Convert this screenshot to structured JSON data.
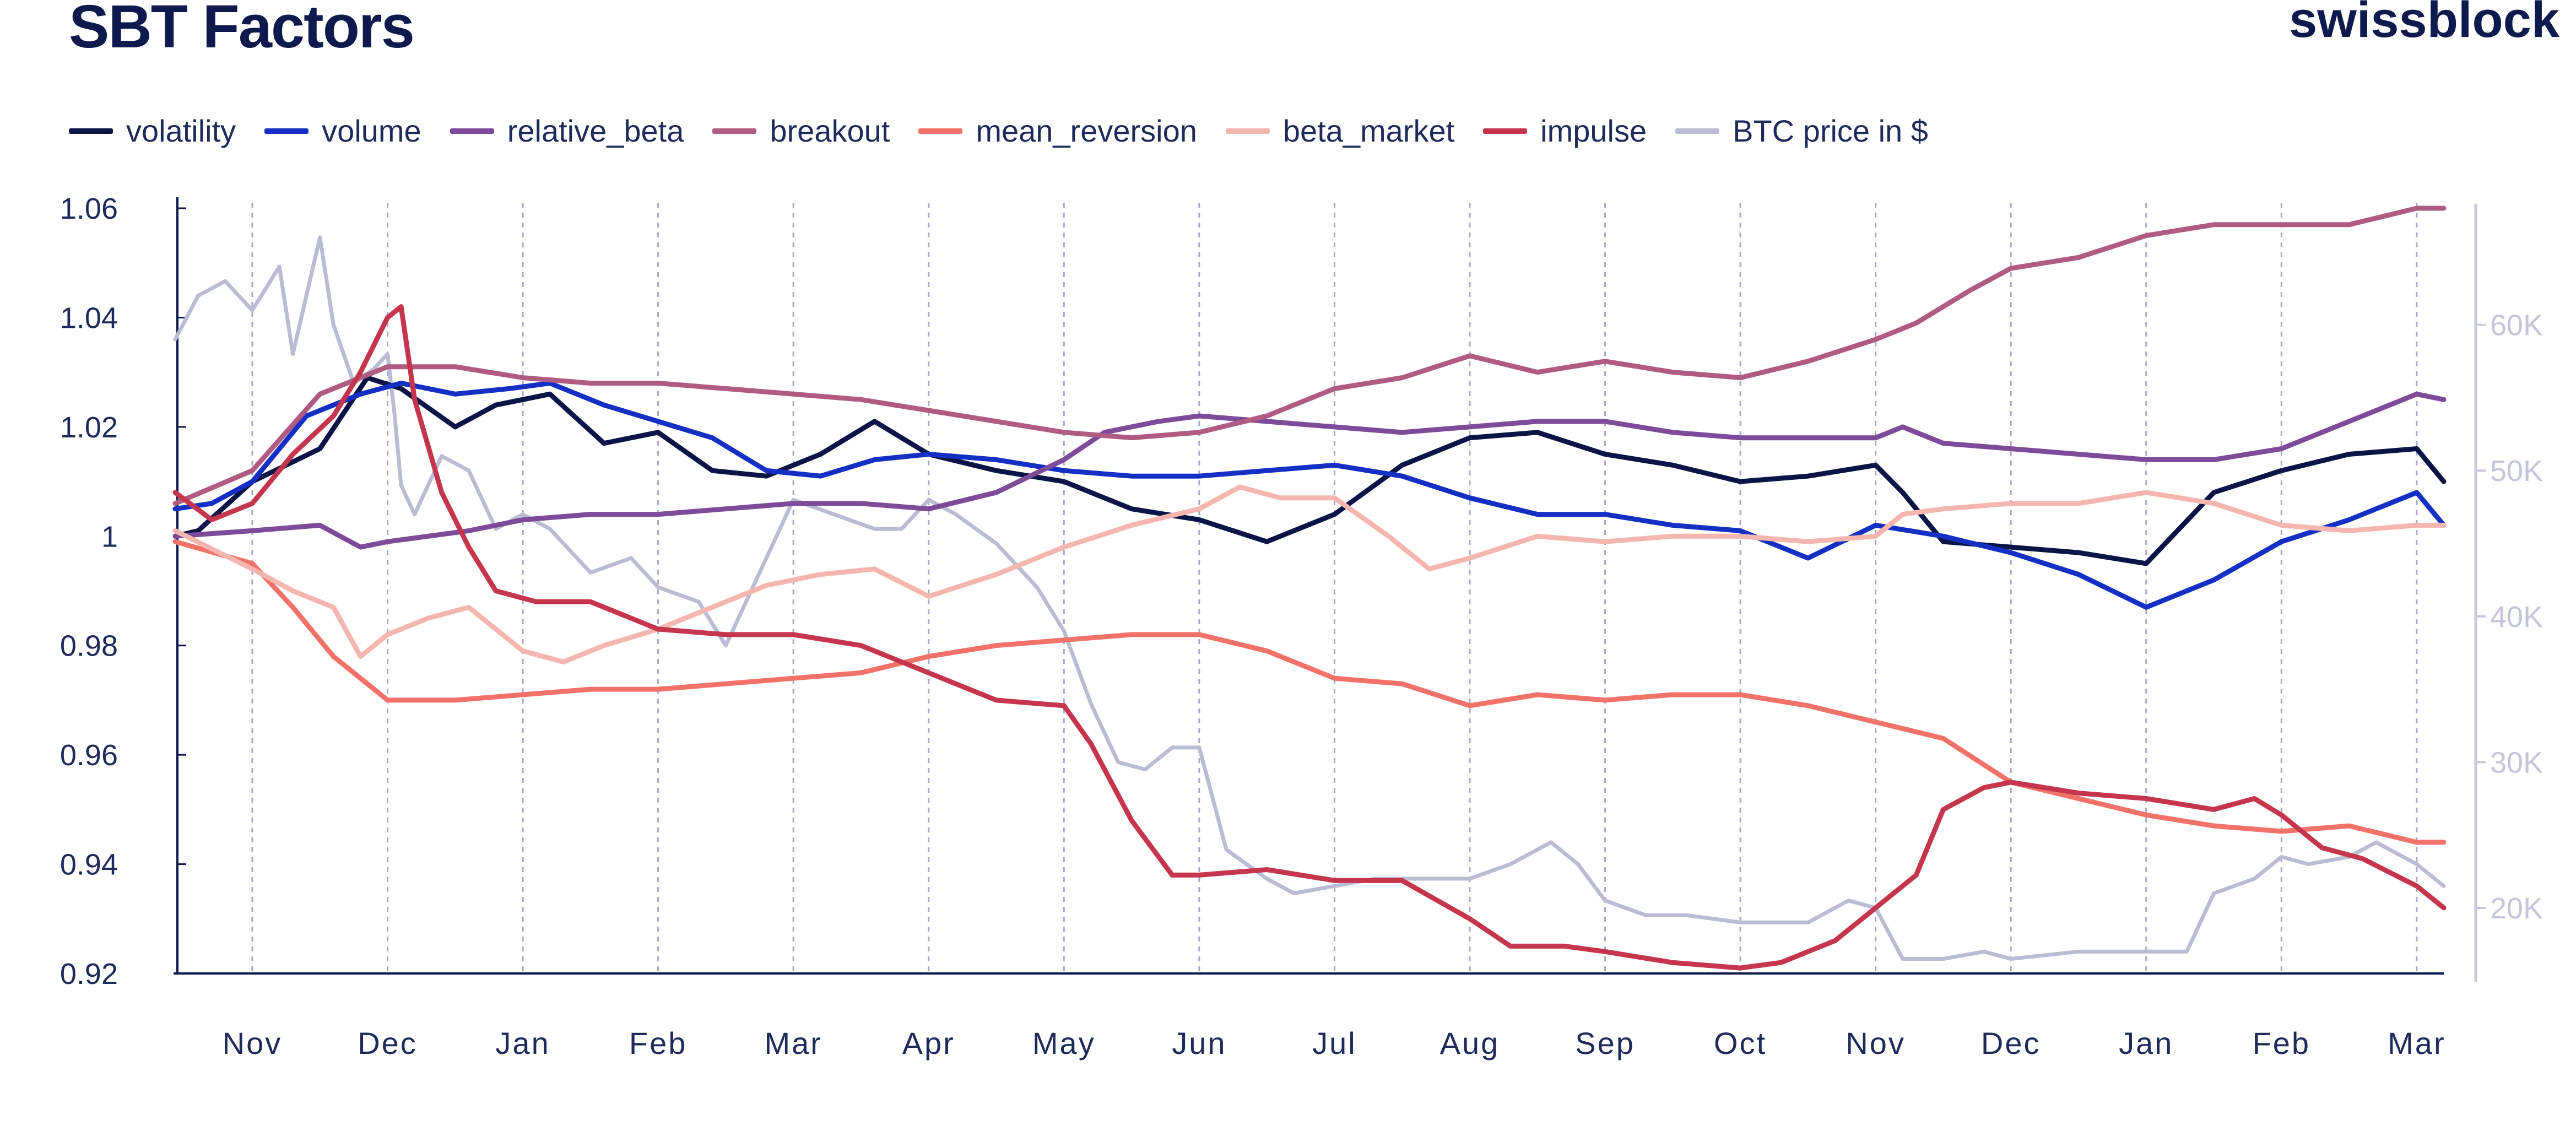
{
  "header": {
    "title": "SBT Factors",
    "brand": "swissblock"
  },
  "chart_data": {
    "type": "line",
    "left_ticks": [
      {
        "value": 0.92,
        "label": "0.92"
      },
      {
        "value": 0.94,
        "label": "0.94"
      },
      {
        "value": 0.96,
        "label": "0.96"
      },
      {
        "value": 0.98,
        "label": "0.98"
      },
      {
        "value": 1.0,
        "label": "1"
      },
      {
        "value": 1.02,
        "label": "1.02"
      },
      {
        "value": 1.04,
        "label": "1.04"
      },
      {
        "value": 1.06,
        "label": "1.06"
      }
    ],
    "right_ticks": [
      {
        "value": 20000,
        "label": "20K"
      },
      {
        "value": 30000,
        "label": "30K"
      },
      {
        "value": 40000,
        "label": "40K"
      },
      {
        "value": 50000,
        "label": "50K"
      },
      {
        "value": 60000,
        "label": "60K"
      }
    ],
    "ylim_left": [
      0.92,
      1.06
    ],
    "ylim_right": [
      15500,
      68000
    ],
    "xlim": [
      -0.57,
      16.2
    ],
    "months": [
      {
        "x": 0,
        "label": "Nov"
      },
      {
        "x": 1,
        "label": "Dec"
      },
      {
        "x": 2,
        "label": "Jan"
      },
      {
        "x": 3,
        "label": "Feb"
      },
      {
        "x": 4,
        "label": "Mar"
      },
      {
        "x": 5,
        "label": "Apr"
      },
      {
        "x": 6,
        "label": "May"
      },
      {
        "x": 7,
        "label": "Jun"
      },
      {
        "x": 8,
        "label": "Jul"
      },
      {
        "x": 9,
        "label": "Aug"
      },
      {
        "x": 10,
        "label": "Sep"
      },
      {
        "x": 11,
        "label": "Oct"
      },
      {
        "x": 12,
        "label": "Nov"
      },
      {
        "x": 13,
        "label": "Dec"
      },
      {
        "x": 14,
        "label": "Jan"
      },
      {
        "x": 15,
        "label": "Feb"
      },
      {
        "x": 16,
        "label": "Mar"
      }
    ],
    "grid": "vertical dashed at each month",
    "legend_position": "top-left",
    "series": [
      {
        "name": "volatility",
        "color": "#0b1446",
        "axis": "left",
        "x": [
          -0.57,
          -0.4,
          0,
          0.5,
          0.85,
          1.1,
          1.5,
          1.8,
          2.2,
          2.6,
          3.0,
          3.4,
          3.8,
          4.2,
          4.6,
          5.0,
          5.5,
          6.0,
          6.5,
          7.0,
          7.5,
          8.0,
          8.5,
          9.0,
          9.5,
          10.0,
          10.5,
          11.0,
          11.5,
          12.0,
          12.2,
          12.5,
          13.0,
          13.5,
          14.0,
          14.5,
          15.0,
          15.5,
          16.0,
          16.2
        ],
        "y": [
          1.0,
          1.001,
          1.01,
          1.016,
          1.029,
          1.027,
          1.02,
          1.024,
          1.026,
          1.017,
          1.019,
          1.012,
          1.011,
          1.015,
          1.021,
          1.015,
          1.012,
          1.01,
          1.005,
          1.003,
          0.999,
          1.004,
          1.013,
          1.018,
          1.019,
          1.015,
          1.013,
          1.01,
          1.011,
          1.013,
          1.008,
          0.999,
          0.998,
          0.997,
          0.995,
          1.008,
          1.012,
          1.015,
          1.016,
          1.01
        ]
      },
      {
        "name": "volume",
        "color": "#1430c4",
        "axis": "left",
        "x": [
          -0.57,
          -0.3,
          0,
          0.4,
          0.8,
          1.1,
          1.5,
          1.9,
          2.2,
          2.6,
          3.0,
          3.4,
          3.8,
          4.2,
          4.6,
          5.0,
          5.5,
          6.0,
          6.5,
          7.0,
          7.5,
          8.0,
          8.5,
          9.0,
          9.5,
          10.0,
          10.5,
          11.0,
          11.5,
          12.0,
          12.5,
          13.0,
          13.5,
          14.0,
          14.5,
          15.0,
          15.5,
          16.0,
          16.2
        ],
        "y": [
          1.005,
          1.006,
          1.01,
          1.022,
          1.026,
          1.028,
          1.026,
          1.027,
          1.028,
          1.024,
          1.021,
          1.018,
          1.012,
          1.011,
          1.014,
          1.015,
          1.014,
          1.012,
          1.011,
          1.011,
          1.012,
          1.013,
          1.011,
          1.007,
          1.004,
          1.004,
          1.002,
          1.001,
          0.996,
          1.002,
          1.0,
          0.997,
          0.993,
          0.987,
          0.992,
          0.999,
          1.003,
          1.008,
          1.002
        ]
      },
      {
        "name": "relative_beta",
        "color": "#7e4a9a",
        "axis": "left",
        "x": [
          -0.57,
          0,
          0.5,
          0.8,
          1.0,
          1.3,
          1.6,
          2.0,
          2.5,
          3.0,
          3.5,
          4.0,
          4.5,
          5.0,
          5.5,
          6.0,
          6.3,
          6.7,
          7.0,
          7.5,
          8.0,
          8.5,
          9.0,
          9.5,
          10.0,
          10.5,
          11.0,
          11.5,
          12.0,
          12.2,
          12.5,
          13.0,
          13.5,
          14.0,
          14.5,
          15.0,
          15.5,
          16.0,
          16.2
        ],
        "y": [
          1.0,
          1.001,
          1.002,
          0.998,
          0.999,
          1.0,
          1.001,
          1.003,
          1.004,
          1.004,
          1.005,
          1.006,
          1.006,
          1.005,
          1.008,
          1.014,
          1.019,
          1.021,
          1.022,
          1.021,
          1.02,
          1.019,
          1.02,
          1.021,
          1.021,
          1.019,
          1.018,
          1.018,
          1.018,
          1.02,
          1.017,
          1.016,
          1.015,
          1.014,
          1.014,
          1.016,
          1.021,
          1.026,
          1.025
        ]
      },
      {
        "name": "breakout",
        "color": "#b05c82",
        "axis": "left",
        "x": [
          -0.57,
          0,
          0.5,
          1.0,
          1.5,
          2.0,
          2.5,
          3.0,
          3.5,
          4.0,
          4.5,
          5.0,
          5.5,
          6.0,
          6.5,
          7.0,
          7.5,
          8.0,
          8.5,
          9.0,
          9.5,
          10.0,
          10.5,
          11.0,
          11.5,
          12.0,
          12.3,
          12.7,
          13.0,
          13.5,
          14.0,
          14.5,
          15.0,
          15.5,
          16.0,
          16.2
        ],
        "y": [
          1.006,
          1.012,
          1.026,
          1.031,
          1.031,
          1.029,
          1.028,
          1.028,
          1.027,
          1.026,
          1.025,
          1.023,
          1.021,
          1.019,
          1.018,
          1.019,
          1.022,
          1.027,
          1.029,
          1.033,
          1.03,
          1.032,
          1.03,
          1.029,
          1.032,
          1.036,
          1.039,
          1.045,
          1.049,
          1.051,
          1.055,
          1.057,
          1.057,
          1.057,
          1.06,
          1.06
        ]
      },
      {
        "name": "mean_reversion",
        "color": "#f2726a",
        "axis": "left",
        "x": [
          -0.57,
          0,
          0.3,
          0.6,
          1.0,
          1.5,
          2.0,
          2.5,
          3.0,
          3.5,
          4.0,
          4.5,
          5.0,
          5.5,
          6.0,
          6.5,
          7.0,
          7.5,
          8.0,
          8.5,
          9.0,
          9.5,
          10.0,
          10.5,
          11.0,
          11.5,
          12.0,
          12.5,
          13.0,
          13.5,
          14.0,
          14.5,
          15.0,
          15.5,
          16.0,
          16.2
        ],
        "y": [
          0.999,
          0.995,
          0.987,
          0.978,
          0.97,
          0.97,
          0.971,
          0.972,
          0.972,
          0.973,
          0.974,
          0.975,
          0.978,
          0.98,
          0.981,
          0.982,
          0.982,
          0.979,
          0.974,
          0.973,
          0.969,
          0.971,
          0.97,
          0.971,
          0.971,
          0.969,
          0.966,
          0.963,
          0.955,
          0.952,
          0.949,
          0.947,
          0.946,
          0.947,
          0.944,
          0.944
        ]
      },
      {
        "name": "beta_market",
        "color": "#f6b6b0",
        "axis": "left",
        "x": [
          -0.57,
          0,
          0.3,
          0.6,
          0.8,
          1.0,
          1.3,
          1.6,
          2.0,
          2.3,
          2.6,
          3.0,
          3.4,
          3.8,
          4.2,
          4.6,
          5.0,
          5.5,
          6.0,
          6.5,
          7.0,
          7.3,
          7.6,
          8.0,
          8.4,
          8.7,
          9.0,
          9.5,
          10.0,
          10.5,
          11.0,
          11.5,
          12.0,
          12.2,
          12.5,
          13.0,
          13.5,
          14.0,
          14.5,
          15.0,
          15.5,
          16.0,
          16.2
        ],
        "y": [
          1.001,
          0.994,
          0.99,
          0.987,
          0.978,
          0.982,
          0.985,
          0.987,
          0.979,
          0.977,
          0.98,
          0.983,
          0.987,
          0.991,
          0.993,
          0.994,
          0.989,
          0.993,
          0.998,
          1.002,
          1.005,
          1.009,
          1.007,
          1.007,
          1.0,
          0.994,
          0.996,
          1.0,
          0.999,
          1.0,
          1.0,
          0.999,
          1.0,
          1.004,
          1.005,
          1.006,
          1.006,
          1.008,
          1.006,
          1.002,
          1.001,
          1.002,
          1.002
        ]
      },
      {
        "name": "impulse",
        "color": "#c5354e",
        "axis": "left",
        "x": [
          -0.57,
          -0.3,
          0,
          0.3,
          0.6,
          0.8,
          1.0,
          1.1,
          1.2,
          1.4,
          1.6,
          1.8,
          2.1,
          2.5,
          3.0,
          3.5,
          4.0,
          4.5,
          4.8,
          5.0,
          5.5,
          6.0,
          6.2,
          6.5,
          6.8,
          7.0,
          7.5,
          8.0,
          8.5,
          9.0,
          9.3,
          9.7,
          10.0,
          10.5,
          11.0,
          11.3,
          11.7,
          12.0,
          12.3,
          12.5,
          12.8,
          13.0,
          13.5,
          14.0,
          14.5,
          14.8,
          15.0,
          15.3,
          15.6,
          16.0,
          16.2
        ],
        "y": [
          1.008,
          1.003,
          1.006,
          1.015,
          1.022,
          1.03,
          1.04,
          1.042,
          1.025,
          1.008,
          0.998,
          0.99,
          0.988,
          0.988,
          0.983,
          0.982,
          0.982,
          0.98,
          0.977,
          0.975,
          0.97,
          0.969,
          0.962,
          0.948,
          0.938,
          0.938,
          0.939,
          0.937,
          0.937,
          0.93,
          0.925,
          0.925,
          0.924,
          0.922,
          0.921,
          0.922,
          0.926,
          0.932,
          0.938,
          0.95,
          0.954,
          0.955,
          0.953,
          0.952,
          0.95,
          0.952,
          0.949,
          0.943,
          0.941,
          0.936,
          0.932
        ]
      },
      {
        "name": "BTC price in $",
        "color": "#b9bcd2",
        "axis": "right",
        "x": [
          -0.57,
          -0.4,
          -0.2,
          0,
          0.2,
          0.3,
          0.5,
          0.6,
          0.75,
          0.9,
          1.0,
          1.05,
          1.1,
          1.2,
          1.4,
          1.6,
          1.8,
          2.0,
          2.2,
          2.5,
          2.8,
          3.0,
          3.3,
          3.5,
          3.8,
          4.0,
          4.3,
          4.6,
          4.8,
          5.0,
          5.2,
          5.5,
          5.8,
          6.0,
          6.2,
          6.4,
          6.6,
          6.8,
          7.0,
          7.2,
          7.5,
          7.7,
          8.0,
          8.3,
          8.6,
          9.0,
          9.3,
          9.6,
          9.8,
          10.0,
          10.3,
          10.6,
          11.0,
          11.5,
          11.8,
          12.0,
          12.2,
          12.5,
          12.8,
          13.0,
          13.5,
          14.0,
          14.3,
          14.5,
          14.8,
          15.0,
          15.2,
          15.5,
          15.7,
          16.0,
          16.2
        ],
        "y": [
          59000,
          62000,
          63000,
          61000,
          64000,
          58000,
          66000,
          60000,
          56000,
          57000,
          58000,
          54000,
          49000,
          47000,
          51000,
          50000,
          46000,
          47000,
          46000,
          43000,
          44000,
          42000,
          41000,
          38000,
          44000,
          48000,
          47000,
          46000,
          46000,
          48000,
          47000,
          45000,
          42000,
          39000,
          34000,
          30000,
          29500,
          31000,
          31000,
          24000,
          22000,
          21000,
          21500,
          22000,
          22000,
          22000,
          23000,
          24500,
          23000,
          20500,
          19500,
          19500,
          19000,
          19000,
          20500,
          20000,
          16500,
          16500,
          17000,
          16500,
          17000,
          17000,
          17000,
          21000,
          22000,
          23500,
          23000,
          23500,
          24500,
          23000,
          21500
        ]
      }
    ]
  }
}
